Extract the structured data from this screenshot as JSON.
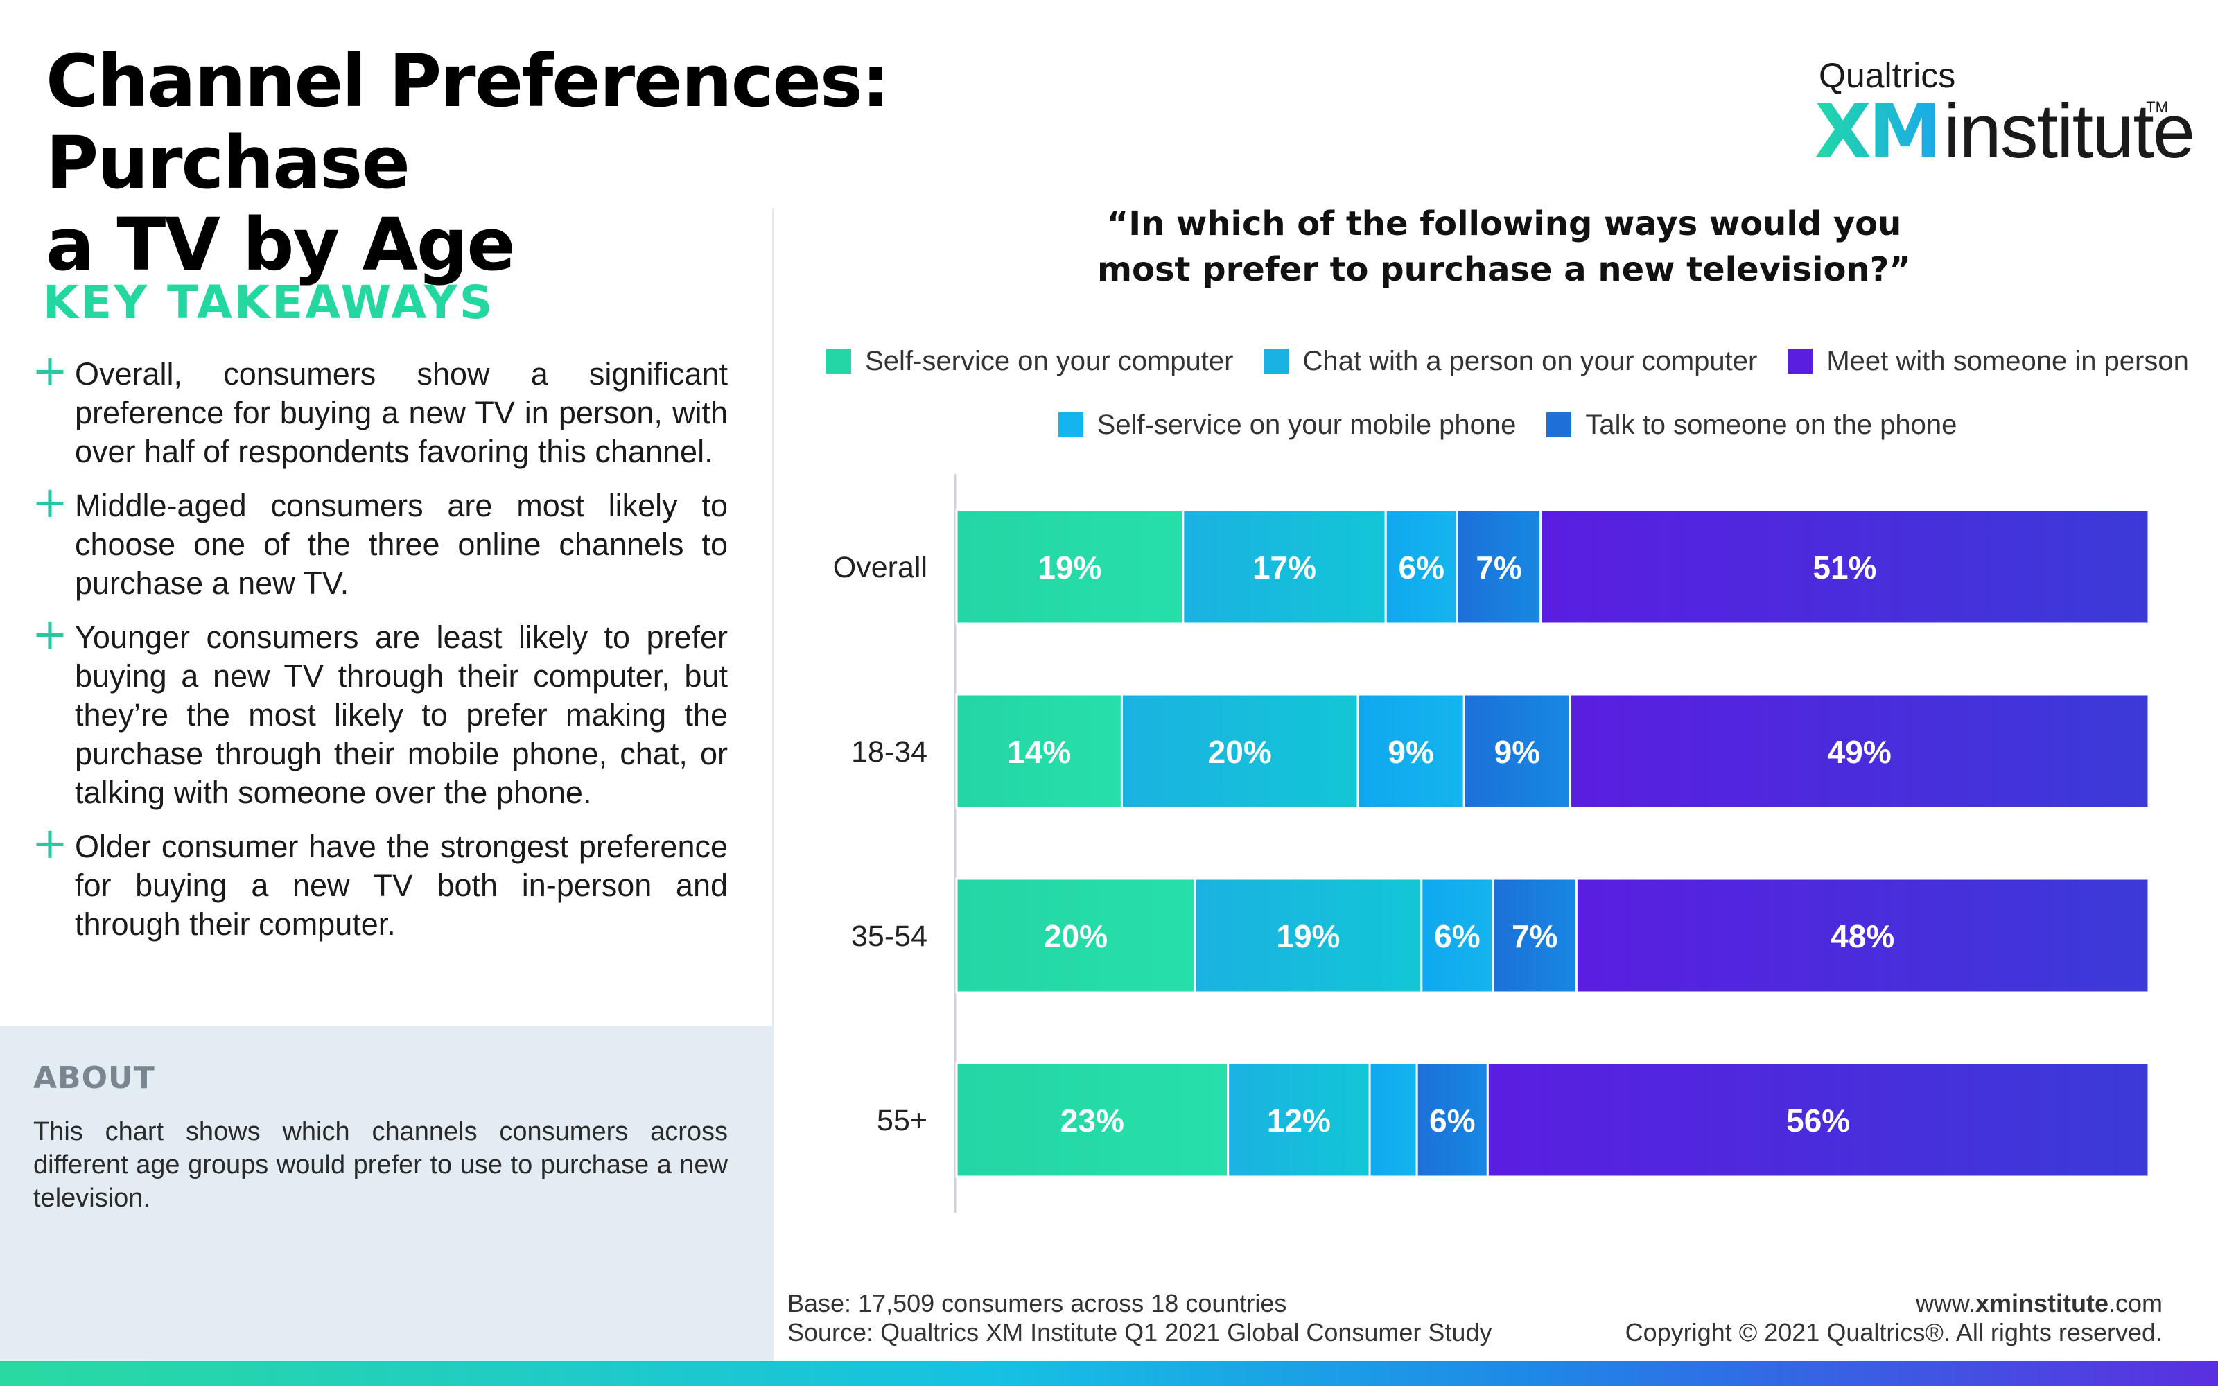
{
  "title_line1": "Channel Preferences: Purchase",
  "title_line2": "a TV by Age",
  "logo": {
    "top": "Qualtrics",
    "xm": "XM",
    "institute": "institute",
    "tm": "TM"
  },
  "key_takeaways": {
    "heading": "KEY TAKEAWAYS",
    "items": [
      "Overall, consumers show a significant preference for buying a new TV in person, with over half of respondents favoring this channel.",
      "Middle-aged consumers are most likely to choose one of the three online channels to purchase a new TV.",
      "Younger consumers are least likely to prefer buying a new TV through their computer, but they’re the most likely to prefer making the purchase through their mobile phone, chat, or talking with someone over the phone.",
      "Older consumer have the strongest preference for buying a new TV both in-person and through their computer."
    ]
  },
  "about": {
    "title": "ABOUT",
    "text": "This chart shows which channels consumers across different age groups would prefer to use to purchase a new television."
  },
  "question_line1": "“In which of the following ways would you",
  "question_line2": "most prefer to purchase a new television?”",
  "chart_data": {
    "type": "bar",
    "orientation": "horizontal",
    "stacked": true,
    "title": "“In which of the following ways would you most prefer to purchase a new television?”",
    "categories": [
      "Overall",
      "18-34",
      "35-54",
      "55+"
    ],
    "unit": "%",
    "xlim": [
      0,
      100
    ],
    "grid": false,
    "legend_placement": "top",
    "series": [
      {
        "name": "Self-service on your computer",
        "values": [
          19,
          14,
          20,
          23
        ],
        "color": "#23d6a6",
        "color2": "#27dfa8"
      },
      {
        "name": "Chat with a person on your computer",
        "values": [
          17,
          20,
          19,
          12
        ],
        "color": "#1ab2e2",
        "color2": "#13c6d6"
      },
      {
        "name": "Self-service on your mobile phone",
        "values": [
          6,
          9,
          6,
          4
        ],
        "color": "#0fa8ef",
        "color2": "#14b5ee"
      },
      {
        "name": "Talk to someone on the phone",
        "values": [
          7,
          9,
          7,
          6
        ],
        "color": "#1c70d8",
        "color2": "#1788e3"
      },
      {
        "name": "Meet with someone in person",
        "values": [
          51,
          49,
          48,
          56
        ],
        "color": "#5a1ee0",
        "color2": "#3b3ad8"
      }
    ],
    "data_labels": [
      [
        "19%",
        "17%",
        "6%",
        "7%",
        "51%"
      ],
      [
        "14%",
        "20%",
        "9%",
        "9%",
        "49%"
      ],
      [
        "20%",
        "19%",
        "6%",
        "7%",
        "48%"
      ],
      [
        "23%",
        "12%",
        "",
        "6%",
        "56%"
      ]
    ]
  },
  "legend_rows": [
    [
      {
        "label": "Self-service on your computer",
        "color": "#23d6a6"
      },
      {
        "label": "Chat with a person on your computer",
        "color": "#1ab2e2"
      },
      {
        "label": "Meet with someone in person",
        "color": "#5a1ee0"
      }
    ],
    [
      {
        "label": "Self-service on your mobile phone",
        "color": "#14b5ee"
      },
      {
        "label": "Talk to someone on the phone",
        "color": "#1c70d8"
      }
    ]
  ],
  "footer": {
    "base": "Base: 17,509 consumers across 18 countries",
    "source": "Source: Qualtrics XM Institute Q1 2021 Global Consumer Study",
    "url_prefix": "www.",
    "url_bold": "xminstitute",
    "url_suffix": ".com",
    "copyright": "Copyright © 2021 Qualtrics®. All rights reserved."
  }
}
